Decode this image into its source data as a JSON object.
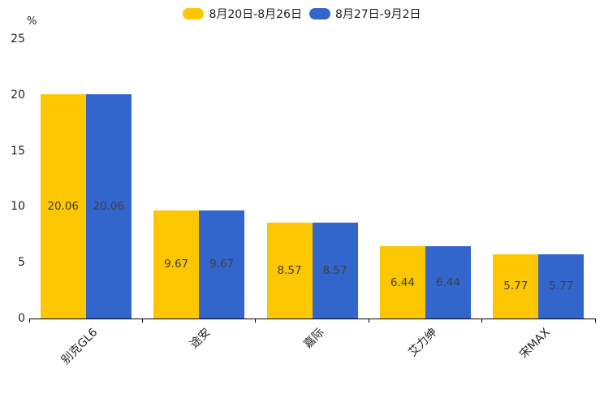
{
  "chart_data": {
    "type": "bar",
    "title": "",
    "ylabel": "%",
    "categories": [
      "别克GL6",
      "途安",
      "嘉际",
      "艾力绅",
      "宋MAX"
    ],
    "series": [
      {
        "name": "8月20日-8月26日",
        "color": "#fcc700",
        "values": [
          20.06,
          9.67,
          8.57,
          6.44,
          5.77
        ]
      },
      {
        "name": "8月27日-9月2日",
        "color": "#3366cc",
        "values": [
          20.06,
          9.67,
          8.57,
          6.44,
          5.77
        ]
      }
    ],
    "ylim": [
      0,
      25
    ],
    "yticks": [
      0,
      5,
      10,
      15,
      20,
      25
    ],
    "grid": false,
    "legend_position": "top-center",
    "value_label_position": "inside-center",
    "value_label_decimals": 2,
    "axis_color": "#000000",
    "text_color": "#222222",
    "value_label_color": "#404040"
  }
}
